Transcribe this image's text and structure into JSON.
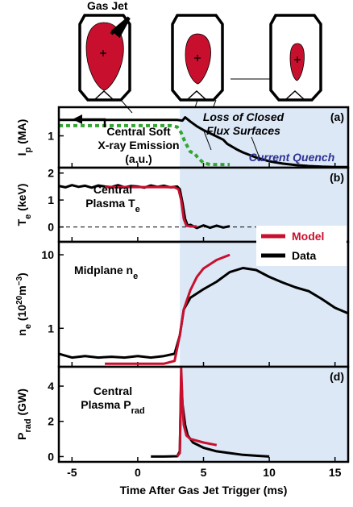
{
  "diagram_label": "Gas Jet",
  "chart_data": [
    {
      "type": "line",
      "panel_label": "(a)",
      "xlim": [
        -6,
        16
      ],
      "xticks": [
        -5,
        0,
        5,
        10,
        15
      ],
      "ylim": [
        0,
        1.9
      ],
      "yticks": [
        1
      ],
      "ylabel": [
        {
          "text": "I"
        },
        {
          "text": "p",
          "sub": true
        },
        {
          "text": " (MA)"
        }
      ],
      "shade": [
        3.2,
        16
      ],
      "annotations": [
        {
          "lines": [
            [
              {
                "text": "Central Soft"
              }
            ],
            [
              {
                "text": "X-ray Emission"
              }
            ],
            [
              {
                "text": "(a.u.)"
              }
            ]
          ]
        },
        {
          "style": "italic",
          "lines": [
            [
              {
                "text": "Loss of Closed"
              }
            ],
            [
              {
                "text": "Flux Surfaces"
              }
            ]
          ]
        },
        {
          "style": "italic",
          "color": "#2e3192",
          "lines": [
            [
              {
                "text": "Current Quench"
              }
            ]
          ]
        }
      ],
      "series": [
        {
          "color": "#000000",
          "x": [
            -6,
            -4,
            -2,
            0,
            2,
            3,
            3.4,
            3.6,
            4,
            4.5,
            5,
            5.5,
            6,
            6.5,
            6.8,
            7.5,
            8,
            9,
            10,
            11,
            12,
            13,
            14,
            15,
            16
          ],
          "values": [
            1.5,
            1.5,
            1.5,
            1.5,
            1.5,
            1.5,
            1.48,
            1.58,
            1.45,
            1.3,
            1.18,
            1.08,
            0.98,
            0.88,
            0.75,
            0.58,
            0.48,
            0.32,
            0.2,
            0.13,
            0.08,
            0.05,
            0.03,
            0.02,
            0.02
          ]
        },
        {
          "color": "#33a532",
          "dotted": true,
          "x": [
            -6,
            -4,
            -2,
            0,
            2,
            2.5,
            3,
            3.3,
            3.6,
            4,
            4.3,
            4.6,
            5,
            5.5,
            6,
            7
          ],
          "values": [
            1.32,
            1.32,
            1.32,
            1.32,
            1.32,
            1.32,
            1.28,
            1.1,
            0.8,
            0.5,
            0.45,
            0.3,
            0.15,
            0.1,
            0.1,
            0.1
          ]
        }
      ]
    },
    {
      "type": "line",
      "panel_label": "(b)",
      "xlim": [
        -6,
        16
      ],
      "xticks": [
        -5,
        0,
        5,
        10,
        15
      ],
      "ylim": [
        -0.55,
        2.2
      ],
      "yticks": [
        0,
        1,
        2
      ],
      "ylabel": [
        {
          "text": "T"
        },
        {
          "text": "e",
          "sub": true
        },
        {
          "text": " (keV)"
        }
      ],
      "shade": [
        3.2,
        16
      ],
      "zero_line": true,
      "annotations": [
        {
          "lines": [
            [
              {
                "text": "Central"
              }
            ],
            [
              {
                "text": "Plasma T"
              },
              {
                "text": "e",
                "sub": true
              }
            ]
          ]
        }
      ],
      "series": [
        {
          "name": "Data",
          "color": "#000000",
          "x": [
            -6,
            -5.5,
            -5,
            -4.5,
            -4,
            -3.5,
            -3,
            -2.5,
            -2,
            -1.5,
            -1,
            -0.5,
            0,
            0.5,
            1,
            1.5,
            2,
            2.5,
            3,
            3.2,
            3.4,
            3.6,
            3.8,
            4,
            4.5,
            5,
            5.5,
            6,
            6.5,
            7
          ],
          "values": [
            1.52,
            1.47,
            1.55,
            1.49,
            1.53,
            1.46,
            1.54,
            1.5,
            1.48,
            1.55,
            1.47,
            1.52,
            1.5,
            1.46,
            1.54,
            1.49,
            1.53,
            1.47,
            1.5,
            1.4,
            0.9,
            0.3,
            0.05,
            0.08,
            -0.04,
            0.06,
            -0.03,
            0.05,
            -0.02,
            0.03
          ]
        },
        {
          "name": "Model",
          "color": "#c8102e",
          "x": [
            -2.5,
            -1,
            0,
            1,
            2,
            2.8,
            3.1,
            3.3,
            3.5,
            3.7,
            4,
            4.5
          ],
          "values": [
            1.48,
            1.48,
            1.48,
            1.48,
            1.48,
            1.47,
            1.4,
            1.0,
            0.3,
            0.05,
            0.02,
            0.02
          ]
        }
      ]
    },
    {
      "type": "line",
      "panel_label": "(c)",
      "log_y": true,
      "xlim": [
        -6,
        16
      ],
      "xticks": [
        -5,
        0,
        5,
        10,
        15
      ],
      "ylim": [
        0.3,
        15
      ],
      "yticks": [
        1,
        10
      ],
      "ylabel": [
        {
          "text": "n"
        },
        {
          "text": "e",
          "sub": true
        },
        {
          "text": " (10"
        },
        {
          "text": "20",
          "sup": true
        },
        {
          "text": "m"
        },
        {
          "text": "−3",
          "sup": true
        },
        {
          "text": ")"
        }
      ],
      "shade": [
        3.2,
        16
      ],
      "annotations": [
        {
          "lines": [
            [
              {
                "text": "Midplane n"
              },
              {
                "text": "e",
                "sub": true
              }
            ]
          ]
        }
      ],
      "series": [
        {
          "name": "Data",
          "color": "#000000",
          "x": [
            -6,
            -5,
            -4,
            -3,
            -2,
            -1,
            0,
            1,
            2,
            2.8,
            3.2,
            3.5,
            4,
            5,
            6,
            7,
            8,
            9,
            10,
            11,
            12,
            13,
            14,
            15,
            16
          ],
          "values": [
            0.45,
            0.4,
            0.42,
            0.4,
            0.41,
            0.4,
            0.42,
            0.4,
            0.42,
            0.45,
            0.8,
            1.8,
            2.6,
            3.4,
            4.3,
            5.8,
            6.6,
            6.2,
            5,
            4.2,
            3.6,
            3.2,
            2.5,
            1.9,
            1.6
          ]
        },
        {
          "name": "Model",
          "color": "#c8102e",
          "x": [
            -2.5,
            0,
            2,
            2.8,
            3.2,
            3.5,
            4,
            4.5,
            5,
            6,
            7
          ],
          "values": [
            0.33,
            0.33,
            0.33,
            0.36,
            0.8,
            1.8,
            3.3,
            5,
            6.5,
            8.5,
            10
          ]
        }
      ]
    },
    {
      "type": "line",
      "panel_label": "(d)",
      "xlim": [
        -6,
        16
      ],
      "xticks": [
        -5,
        0,
        5,
        10,
        15
      ],
      "ylim": [
        -0.3,
        5.1
      ],
      "yticks": [
        0,
        2,
        4
      ],
      "ylabel": [
        {
          "text": "P"
        },
        {
          "text": "rad",
          "sub": true
        },
        {
          "text": " (GW)"
        }
      ],
      "xlabel": "Time After Gas Jet Trigger (ms)",
      "shade": [
        3.2,
        16
      ],
      "annotations": [
        {
          "lines": [
            [
              {
                "text": "Central"
              }
            ],
            [
              {
                "text": "Plasma P"
              },
              {
                "text": "rad",
                "sub": true
              }
            ]
          ]
        }
      ],
      "series": [
        {
          "name": "Data",
          "color": "#000000",
          "x": [
            1,
            2,
            3,
            3.2,
            3.3,
            3.4,
            3.6,
            3.8,
            4.2,
            5,
            6,
            7,
            8,
            9,
            10
          ],
          "values": [
            0,
            0,
            0.02,
            0.3,
            4.5,
            3,
            1.8,
            1.2,
            0.8,
            0.5,
            0.3,
            0.2,
            0.1,
            0.05,
            0
          ]
        },
        {
          "name": "Model",
          "color": "#c8102e",
          "x": [
            3,
            3.2,
            3.3,
            3.4,
            3.5,
            3.7,
            4,
            5,
            6
          ],
          "values": [
            0,
            0.2,
            5,
            3,
            1.8,
            1.2,
            1,
            0.8,
            0.65
          ]
        }
      ]
    }
  ]
}
